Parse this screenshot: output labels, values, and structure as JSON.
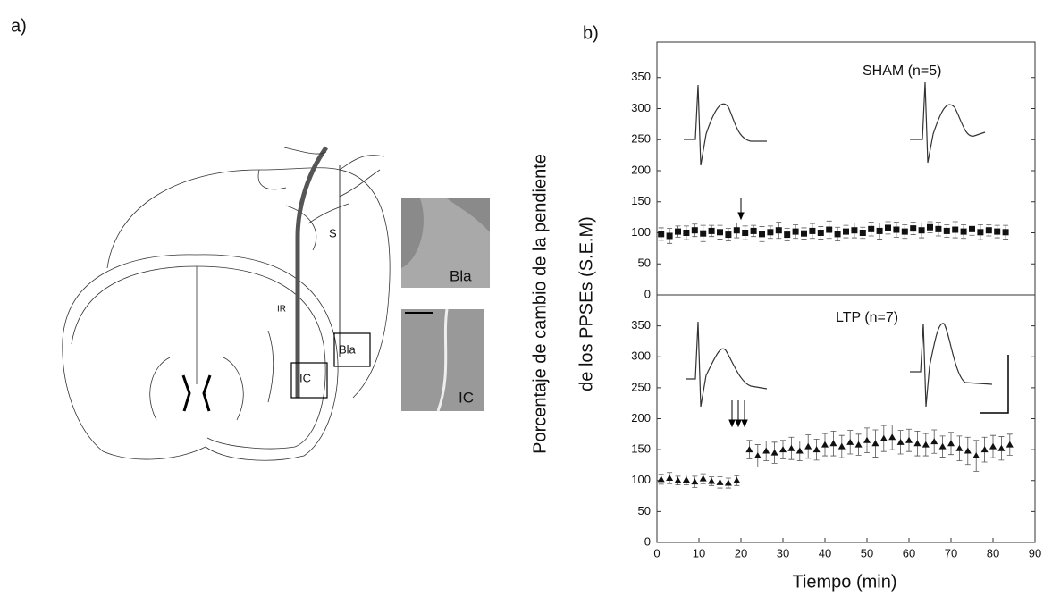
{
  "panel_a": {
    "label": "a)",
    "labels": [
      "S",
      "IR",
      "Bla",
      "IC"
    ],
    "micrographs": [
      "Bla",
      "IC"
    ]
  },
  "panel_b": {
    "label": "b)"
  },
  "chart_data": [
    {
      "type": "scatter",
      "annotation": "SHAM (n=5)",
      "marker": "square",
      "color": "#111111",
      "ylabel": [
        "Porcentaje de cambio de la pendiente",
        "de los PPSEs (S.E.M)"
      ],
      "xlim": [
        0,
        90
      ],
      "ylim": [
        0,
        400
      ],
      "yticks": [
        0,
        50,
        100,
        150,
        200,
        250,
        300,
        350
      ],
      "x": [
        1,
        3,
        5,
        7,
        9,
        11,
        13,
        15,
        17,
        19,
        21,
        23,
        25,
        27,
        29,
        31,
        33,
        35,
        37,
        39,
        41,
        43,
        45,
        47,
        49,
        51,
        53,
        55,
        57,
        59,
        61,
        63,
        65,
        67,
        69,
        71,
        73,
        75,
        77,
        79,
        81,
        83
      ],
      "values": [
        98,
        95,
        102,
        100,
        104,
        99,
        103,
        101,
        97,
        104,
        100,
        103,
        98,
        101,
        104,
        97,
        102,
        99,
        103,
        100,
        105,
        98,
        102,
        104,
        100,
        106,
        103,
        108,
        105,
        102,
        107,
        104,
        109,
        106,
        103,
        105,
        102,
        106,
        101,
        104,
        102,
        101
      ],
      "errors": [
        10,
        12,
        9,
        11,
        10,
        13,
        9,
        11,
        10,
        12,
        11,
        9,
        12,
        10,
        13,
        10,
        11,
        9,
        12,
        10,
        14,
        11,
        10,
        12,
        9,
        11,
        13,
        10,
        12,
        11,
        10,
        12,
        9,
        11,
        10,
        13,
        11,
        10,
        12,
        9,
        10,
        11
      ]
    },
    {
      "type": "scatter",
      "annotation": "LTP (n=7)",
      "marker": "triangle",
      "color": "#111111",
      "xlabel": "Tiempo (min)",
      "xlim": [
        0,
        90
      ],
      "xticks": [
        0,
        10,
        20,
        30,
        40,
        50,
        60,
        70,
        80,
        90
      ],
      "ylim": [
        0,
        400
      ],
      "yticks": [
        0,
        50,
        100,
        150,
        200,
        250,
        300,
        350
      ],
      "x": [
        1,
        3,
        5,
        7,
        9,
        11,
        13,
        15,
        17,
        19,
        22,
        24,
        26,
        28,
        30,
        32,
        34,
        36,
        38,
        40,
        42,
        44,
        46,
        48,
        50,
        52,
        54,
        56,
        58,
        60,
        62,
        64,
        66,
        68,
        70,
        72,
        74,
        76,
        78,
        80,
        82,
        84
      ],
      "values": [
        102,
        104,
        100,
        101,
        98,
        103,
        99,
        97,
        96,
        100,
        150,
        140,
        148,
        145,
        150,
        152,
        148,
        155,
        150,
        158,
        160,
        155,
        162,
        158,
        165,
        160,
        168,
        170,
        162,
        165,
        160,
        158,
        163,
        155,
        160,
        152,
        148,
        140,
        150,
        155,
        152,
        158
      ],
      "errors": [
        8,
        9,
        7,
        8,
        9,
        8,
        7,
        9,
        8,
        8,
        15,
        18,
        16,
        17,
        15,
        18,
        16,
        19,
        17,
        18,
        20,
        18,
        19,
        17,
        20,
        22,
        21,
        20,
        19,
        18,
        20,
        18,
        19,
        17,
        18,
        20,
        22,
        25,
        20,
        18,
        19,
        17
      ]
    }
  ]
}
